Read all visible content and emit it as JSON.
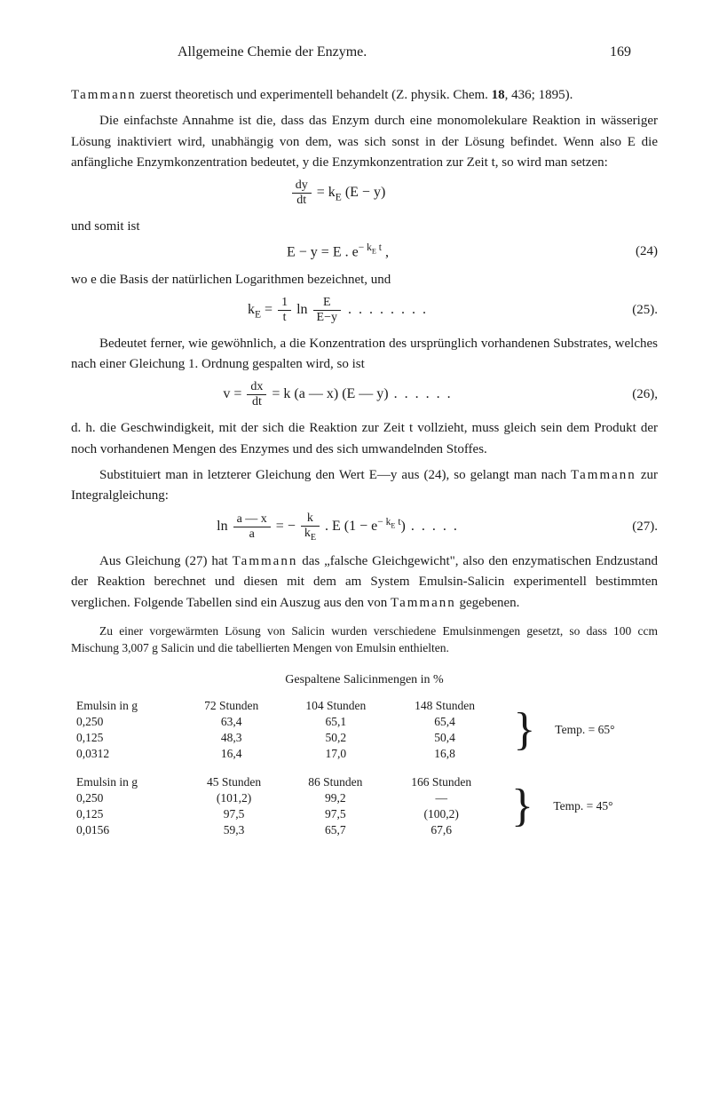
{
  "header": {
    "title": "Allgemeine Chemie der Enzyme.",
    "page": "169"
  },
  "p1a": "Tammann zuerst theoretisch und experimentell behandelt (Z. physik. Chem. 18, 436; 1895).",
  "p1b": "Die einfachste Annahme ist die, dass das Enzym durch eine monomolekulare Reaktion in wässeriger Lösung inaktiviert wird, unabhängig von dem, was sich sonst in der Lösung befindet. Wenn also E die anfängliche Enzymkonzentration bedeutet, y die Enzymkonzentration zur Zeit t, so wird man setzen:",
  "eq_dy": {
    "num": "dy",
    "den": "dt",
    "rhs": " = k",
    "sub1": "E",
    "rhs2": " (E − y)"
  },
  "p2": "und somit ist",
  "eq24": {
    "content": "E − y = E . e",
    "exp": "− k",
    "expsub": "E",
    "expt": " t",
    "tail": " ,",
    "label": "(24)"
  },
  "p3": "wo e die Basis der natürlichen Logarithmen bezeichnet, und",
  "eq25": {
    "pre": "k",
    "presub": "E",
    "eq": " = ",
    "f1num": "1",
    "f1den": "t",
    "ln": " ln ",
    "f2num": "E",
    "f2den": "E−y",
    "dots": " . . . . . . . .",
    "label": "(25)."
  },
  "p4": "Bedeutet ferner, wie gewöhnlich, a die Konzentration des ursprünglich vorhandenen Substrates, welches nach einer Gleichung 1. Ordnung gespalten wird, so ist",
  "eq26": {
    "pre": "v = ",
    "num": "dx",
    "den": "dt",
    "rhs": " = k (a — x) (E — y)",
    "dots": " . . . . . .",
    "label": "(26),"
  },
  "p5": "d. h. die Geschwindigkeit, mit der sich die Reaktion zur Zeit t vollzieht, muss gleich sein dem Produkt der noch vorhandenen Mengen des Enzymes und des sich umwandelnden Stoffes.",
  "p6": "Substituiert man in letzterer Gleichung den Wert E—y aus (24), so gelangt man nach Tammann zur Integralgleichung:",
  "eq27": {
    "ln": "ln ",
    "f1num": "a — x",
    "f1den": "a",
    "mid": " = − ",
    "f2num": "k",
    "f2den": "k",
    "f2densub": "E",
    "rhs": " . E (1 − e",
    "exp": "− k",
    "expsub": "E",
    "expt": " t",
    "rhs2": ")",
    "dots": " . . . . .",
    "label": "(27)."
  },
  "p7": "Aus Gleichung (27) hat Tammann das „falsche Gleichgewicht\", also den enzymatischen Endzustand der Reaktion berechnet und diesen mit dem am System Emulsin-Salicin experimentell bestimmten verglichen. Folgende Tabellen sind ein Auszug aus den von Tammann gegebenen.",
  "note": "Zu einer vorgewärmten Lösung von Salicin wurden verschiedene Emulsinmengen gesetzt, so dass 100 ccm Mischung 3,007 g Salicin und die tabellierten Mengen von Emulsin enthielten.",
  "table_title": "Gespaltene Salicinmengen in %",
  "table1": {
    "header": [
      "Emulsin in g",
      "72 Stunden",
      "104 Stunden",
      "148 Stunden"
    ],
    "rows": [
      [
        "0,250",
        "63,4",
        "65,1",
        "65,4"
      ],
      [
        "0,125",
        "48,3",
        "50,2",
        "50,4"
      ],
      [
        "0,0312",
        "16,4",
        "17,0",
        "16,8"
      ]
    ],
    "temp": "Temp. = 65°"
  },
  "table2": {
    "header": [
      "Emulsin in g",
      "45 Stunden",
      "86 Stunden",
      "166 Stunden"
    ],
    "rows": [
      [
        "0,250",
        "(101,2)",
        "99,2",
        "—"
      ],
      [
        "0,125",
        "97,5",
        "97,5",
        "(100,2)"
      ],
      [
        "0,0156",
        "59,3",
        "65,7",
        "67,6"
      ]
    ],
    "temp": "Temp. = 45°"
  }
}
